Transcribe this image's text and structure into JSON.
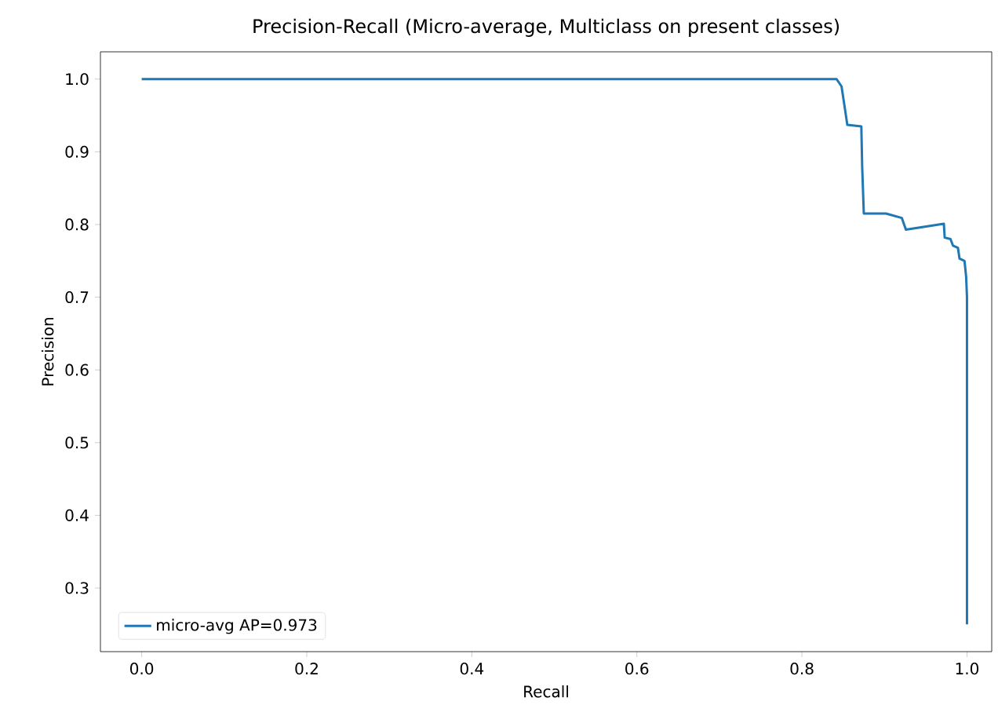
{
  "chart_data": {
    "type": "line",
    "title": "Precision-Recall (Micro-average, Multiclass on present classes)",
    "xlabel": "Recall",
    "ylabel": "Precision",
    "series": [
      {
        "name": "micro-avg AP=0.973",
        "color": "#1f77b4",
        "x": [
          0.0,
          0.842,
          0.848,
          0.852,
          0.855,
          0.872,
          0.873,
          0.875,
          0.902,
          0.921,
          0.926,
          0.972,
          0.973,
          0.98,
          0.983,
          0.989,
          0.991,
          0.997,
          0.999,
          1.0,
          1.0
        ],
        "values": [
          1.0,
          1.0,
          0.99,
          0.96,
          0.937,
          0.935,
          0.88,
          0.815,
          0.815,
          0.809,
          0.793,
          0.801,
          0.782,
          0.78,
          0.771,
          0.768,
          0.753,
          0.75,
          0.728,
          0.7,
          0.25
        ]
      }
    ],
    "xlim": [
      -0.05,
      1.03
    ],
    "ylim": [
      0.2125,
      1.0375
    ],
    "xticks": [
      {
        "value": 0,
        "label": "0.0"
      },
      0.2,
      0.4,
      0.6,
      0.8,
      {
        "value": 1,
        "label": "1.0"
      }
    ],
    "yticks": [
      0.3,
      0.4,
      0.5,
      0.6,
      0.7,
      0.8,
      0.9,
      {
        "value": 1,
        "label": "1.0"
      }
    ],
    "legend": "bottom left",
    "grid": false,
    "marker": "none",
    "line_style": "solid"
  }
}
